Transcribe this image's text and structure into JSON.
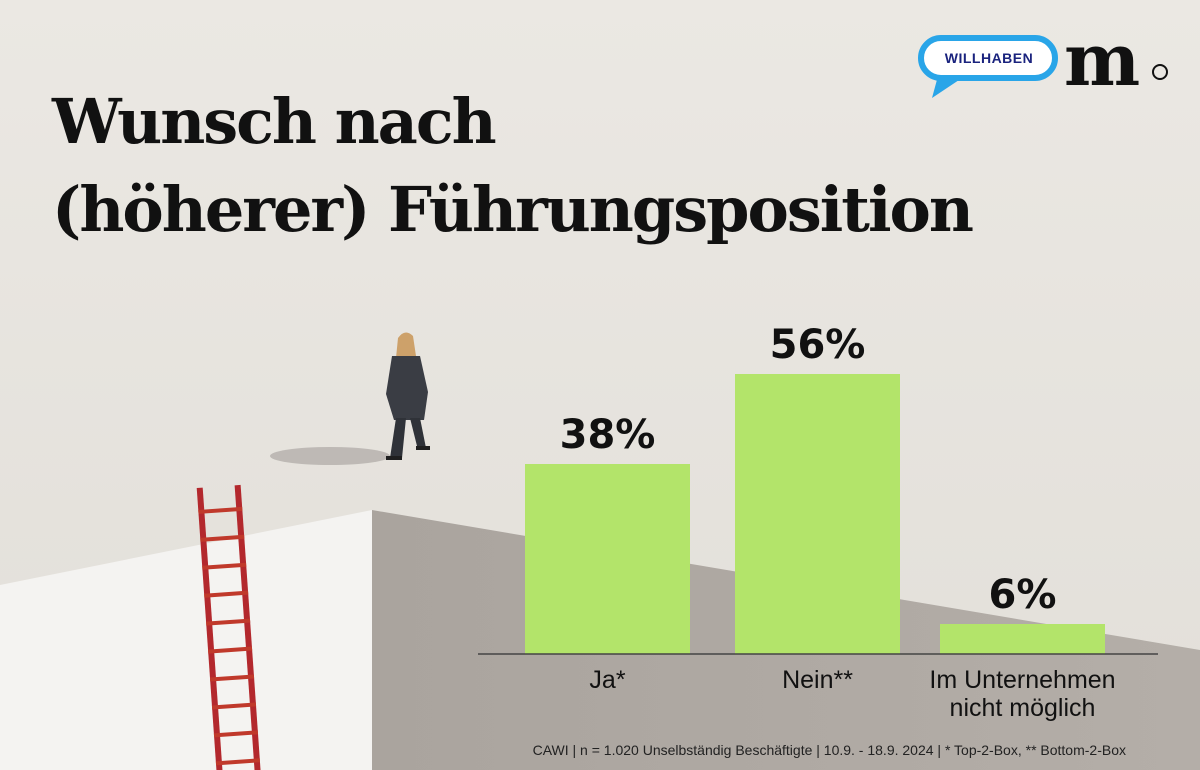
{
  "title_lines": [
    "Wunsch nach",
    "(höherer) Führungsposition"
  ],
  "brand": {
    "willhaben_text": "WILLHABEN",
    "m_logo_text": "m"
  },
  "colors": {
    "bar": "#b3e46a",
    "text": "#111111",
    "willhaben_blue": "#29a5e8",
    "ladder": "#b3282d"
  },
  "chart_data": {
    "type": "bar",
    "title": "Wunsch nach (höherer) Führungsposition",
    "categories": [
      [
        "Ja*"
      ],
      [
        "Nein**"
      ],
      [
        "Im Unternehmen",
        "nicht möglich"
      ]
    ],
    "values": [
      38,
      56,
      6
    ],
    "value_labels": [
      "38%",
      "56%",
      "6%"
    ],
    "unit": "%",
    "ylim": [
      0,
      70
    ],
    "grid": false,
    "legend": "none"
  },
  "footnote": "CAWI | n = 1.020 Unselbständig Beschäftigte | 10.9. - 18.9. 2024 | * Top-2-Box, ** Bottom-2-Box"
}
